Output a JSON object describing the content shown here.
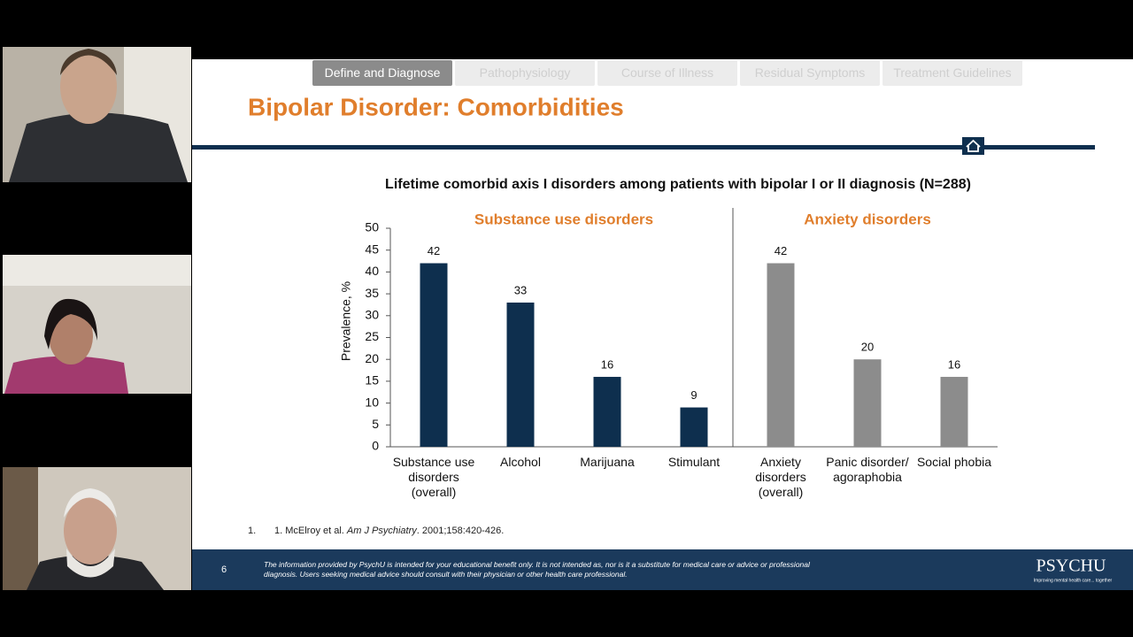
{
  "tabs": [
    "Define and Diagnose",
    "Pathophysiology",
    "Course of Illness",
    "Residual Symptoms",
    "Treatment Guidelines"
  ],
  "slide_title": "Bipolar Disorder: Comorbidities",
  "chart_data": {
    "type": "bar",
    "title": "Lifetime comorbid axis I disorders among patients with bipolar I or II diagnosis (N=288)",
    "y_label": "Prevalence, %",
    "categories": [
      "Substance use disorders (overall)",
      "Alcohol",
      "Marijuana",
      "Stimulant",
      "Anxiety disorders (overall)",
      "Panic disorder/ agoraphobia",
      "Social phobia"
    ],
    "series": [
      {
        "name": "Substance use disorders",
        "color": "#0e2f4e",
        "values": [
          42,
          33,
          16,
          9,
          null,
          null,
          null
        ]
      },
      {
        "name": "Anxiety disorders",
        "color": "#8c8c8c",
        "values": [
          null,
          null,
          null,
          null,
          42,
          20,
          16
        ]
      }
    ],
    "ylim": [
      0,
      50
    ],
    "yticks": [
      0,
      5,
      10,
      15,
      20,
      25,
      30,
      35,
      40,
      45,
      50
    ]
  },
  "footnote": {
    "number": "1.",
    "authors": "1. McElroy et al.",
    "journal": "Am J Psychiatry",
    "citation": ". 2001;158:420-426."
  },
  "footer": {
    "page": "6",
    "disclaimer": "The information provided by PsychU is intended for your educational benefit only. It is not intended as, nor is it a substitute for medical care or advice or professional diagnosis. Users seeking medical advice should consult with their physician or other health care professional.",
    "logo": "PSYCHU",
    "tagline": "Improving mental health care... together"
  }
}
